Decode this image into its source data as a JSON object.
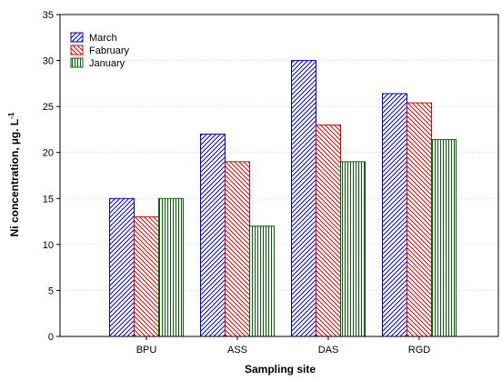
{
  "chart_data": {
    "type": "bar",
    "title": "",
    "xlabel": "Sampling site",
    "ylabel": {
      "main": "Ni concentration, µg. L",
      "superscript": "-1"
    },
    "categories": [
      "BPU",
      "ASS",
      "DAS",
      "RGD"
    ],
    "series": [
      {
        "name": "March",
        "values": [
          15,
          22,
          30,
          26.4
        ],
        "color": "#0000cc",
        "pattern": "diagonal"
      },
      {
        "name": "Fabruary",
        "values": [
          13,
          19,
          23,
          25.4
        ],
        "color": "#dd0000",
        "pattern": "diagonal-reverse"
      },
      {
        "name": "January",
        "values": [
          15,
          12,
          19,
          21.4
        ],
        "color": "#006600",
        "pattern": "vertical"
      }
    ],
    "ylim": [
      0,
      35
    ],
    "yticks": [
      0,
      5,
      10,
      15,
      20,
      25,
      30,
      35
    ],
    "grid": true,
    "legend_position": "top-left"
  }
}
